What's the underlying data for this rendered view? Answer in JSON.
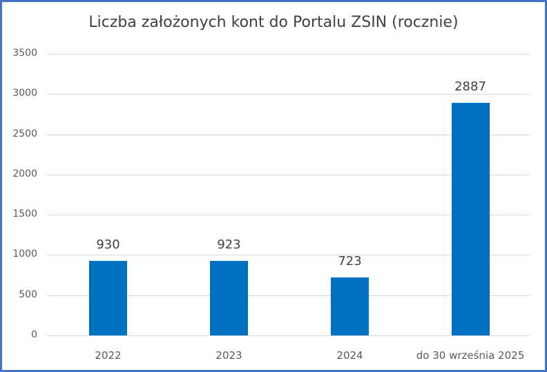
{
  "chart_data": {
    "type": "bar",
    "title": "Liczba założonych kont do Portalu ZSIN (rocznie)",
    "categories": [
      "2022",
      "2023",
      "2024",
      "do 30 września 2025"
    ],
    "values": [
      930,
      923,
      723,
      2887
    ],
    "data_labels": [
      "930",
      "923",
      "723",
      "2887"
    ],
    "xlabel": "",
    "ylabel": "",
    "ylim": [
      0,
      3500
    ],
    "yticks": [
      "0",
      "500",
      "1000",
      "1500",
      "2000",
      "2500",
      "3000",
      "3500"
    ],
    "grid": true,
    "legend": "none",
    "bar_color": "#0070C0",
    "border_color": "#4472C4"
  }
}
